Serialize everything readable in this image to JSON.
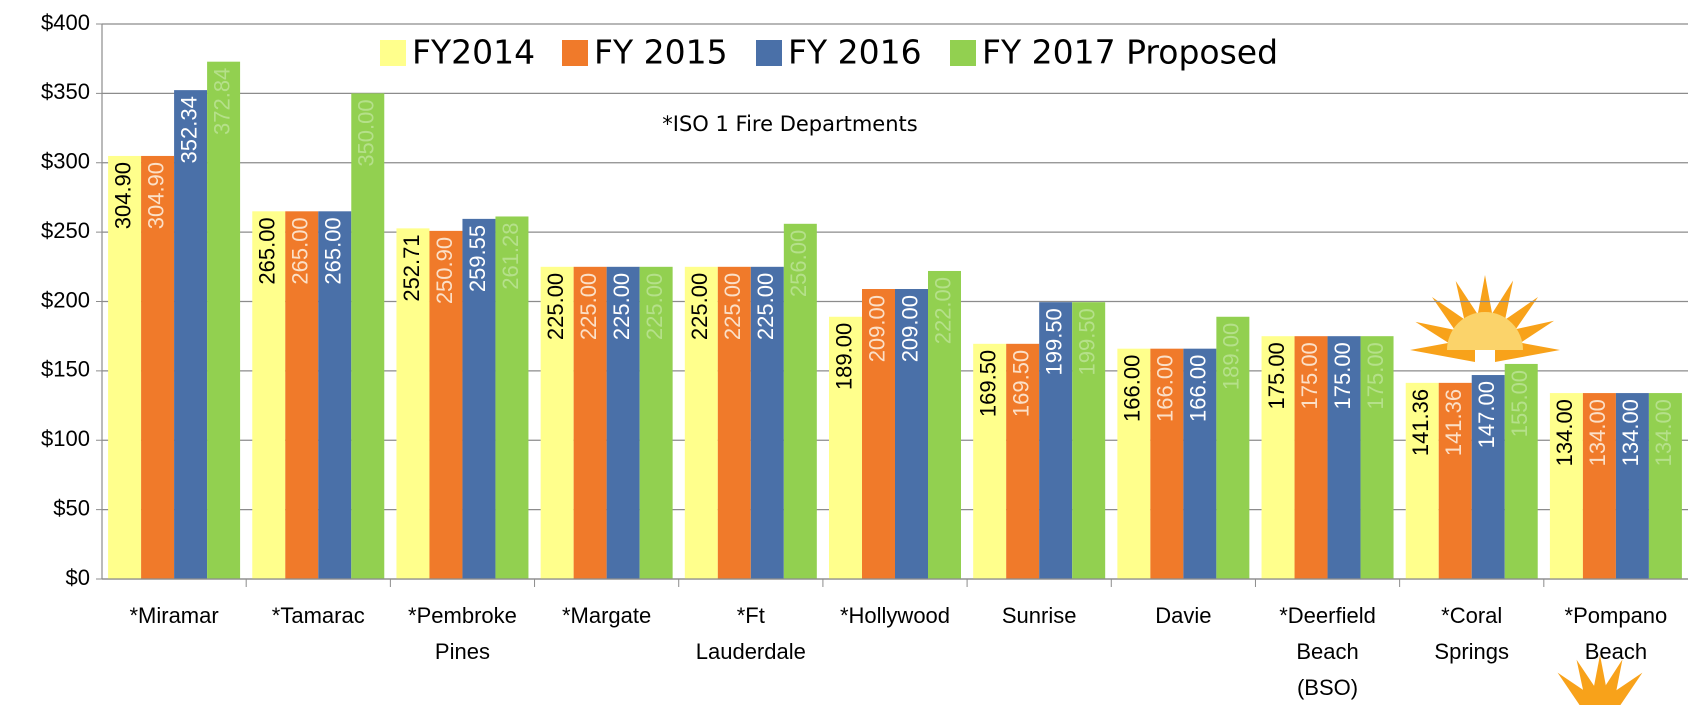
{
  "chart_data": {
    "type": "bar",
    "annotation": "*ISO 1 Fire Departments",
    "categories": [
      "*Miramar",
      "*Tamarac",
      "*Pembroke Pines",
      "*Margate",
      "*Ft Lauderdale",
      "*Hollywood",
      "Sunrise",
      "Davie",
      "*Deerfield Beach (BSO)",
      "*Coral Springs",
      "*Pompano Beach"
    ],
    "series": [
      {
        "name": "FY2014",
        "color": "#ffff8c",
        "values": [
          304.9,
          265,
          252.71,
          225,
          225,
          189,
          169.5,
          166,
          175,
          141.36,
          134
        ],
        "value_labels": [
          "304.90",
          "265.00",
          "252.71",
          "225.00",
          "225.00",
          "189.00",
          "169.50",
          "166.00",
          "175.00",
          "141.36",
          "134.00"
        ]
      },
      {
        "name": "FY 2015",
        "color": "#f07a2a",
        "values": [
          304.9,
          265,
          250.9,
          225,
          225,
          209,
          169.5,
          166,
          175,
          141.36,
          134
        ],
        "value_labels": [
          "304.90",
          "265.00",
          "250.90",
          "225.00",
          "225.00",
          "209.00",
          "169.50",
          "166.00",
          "175.00",
          "141.36",
          "134.00"
        ]
      },
      {
        "name": "FY 2016",
        "color": "#4a70a8",
        "values": [
          352.34,
          265,
          259.55,
          225,
          225,
          209,
          199.5,
          166,
          175,
          147,
          134
        ],
        "value_labels": [
          "352.34",
          "265.00",
          "259.55",
          "225.00",
          "225.00",
          "209.00",
          "199.50",
          "166.00",
          "175.00",
          "147.00",
          "134.00"
        ]
      },
      {
        "name": "FY 2017 Proposed",
        "color": "#92d050",
        "values": [
          372.84,
          350,
          261.28,
          225,
          256,
          222,
          199.5,
          189,
          175,
          155,
          134
        ],
        "value_labels": [
          "372.84",
          "350.00",
          "261.28",
          "225.00",
          "256.00",
          "222.00",
          "199.50",
          "189.00",
          "175.00",
          "155.00",
          "134.00"
        ]
      }
    ],
    "ylim": [
      0,
      400
    ],
    "yticks": [
      {
        "value": 0,
        "label": "$0"
      },
      {
        "value": 50,
        "label": "$50"
      },
      {
        "value": 100,
        "label": "$100"
      },
      {
        "value": 150,
        "label": "$150"
      },
      {
        "value": 200,
        "label": "$200"
      },
      {
        "value": 250,
        "label": "$250"
      },
      {
        "value": 300,
        "label": "$300"
      },
      {
        "value": 350,
        "label": "$350"
      },
      {
        "value": 400,
        "label": "$400"
      }
    ],
    "grid": true
  }
}
